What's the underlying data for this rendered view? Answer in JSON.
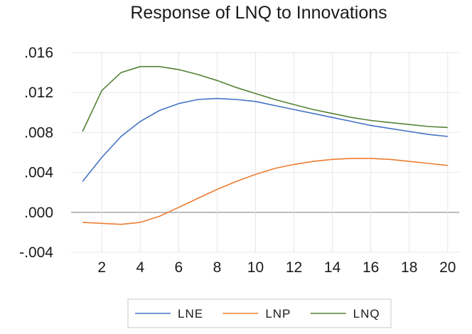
{
  "chart_data": {
    "type": "line",
    "title": "Response of LNQ to Innovations",
    "xlabel": "",
    "ylabel": "",
    "x": [
      1,
      2,
      3,
      4,
      5,
      6,
      7,
      8,
      9,
      10,
      11,
      12,
      13,
      14,
      15,
      16,
      17,
      18,
      19,
      20
    ],
    "xlim": [
      0.4,
      20.6
    ],
    "ylim": [
      -0.004,
      0.016
    ],
    "x_ticks": [
      2,
      4,
      6,
      8,
      10,
      12,
      14,
      16,
      18,
      20
    ],
    "x_tick_labels": [
      "2",
      "4",
      "6",
      "8",
      "10",
      "12",
      "14",
      "16",
      "18",
      "20"
    ],
    "y_ticks": [
      -0.004,
      0.0,
      0.004,
      0.008,
      0.012,
      0.016
    ],
    "y_tick_labels": [
      "-.004",
      ".000",
      ".004",
      ".008",
      ".012",
      ".016"
    ],
    "grid": true,
    "zero_line": true,
    "legend_position": "bottom-center",
    "series": [
      {
        "name": "LNE",
        "color": "#4472c4",
        "values": [
          0.0031,
          0.0055,
          0.0076,
          0.0091,
          0.0102,
          0.0109,
          0.0113,
          0.0114,
          0.0113,
          0.0111,
          0.0107,
          0.0103,
          0.0099,
          0.0095,
          0.0091,
          0.0087,
          0.0084,
          0.0081,
          0.0078,
          0.0076
        ]
      },
      {
        "name": "LNP",
        "color": "#ed7d31",
        "values": [
          -0.001,
          -0.0011,
          -0.0012,
          -0.001,
          -0.0004,
          0.0005,
          0.0014,
          0.0023,
          0.0031,
          0.0038,
          0.0044,
          0.0048,
          0.0051,
          0.0053,
          0.0054,
          0.0054,
          0.0053,
          0.0051,
          0.0049,
          0.0047
        ]
      },
      {
        "name": "LNQ",
        "color": "#548235",
        "values": [
          0.0081,
          0.0122,
          0.014,
          0.0146,
          0.0146,
          0.0143,
          0.0138,
          0.0132,
          0.0125,
          0.0119,
          0.0113,
          0.0108,
          0.0103,
          0.0099,
          0.0095,
          0.0092,
          0.009,
          0.0088,
          0.0086,
          0.0085
        ]
      }
    ]
  }
}
